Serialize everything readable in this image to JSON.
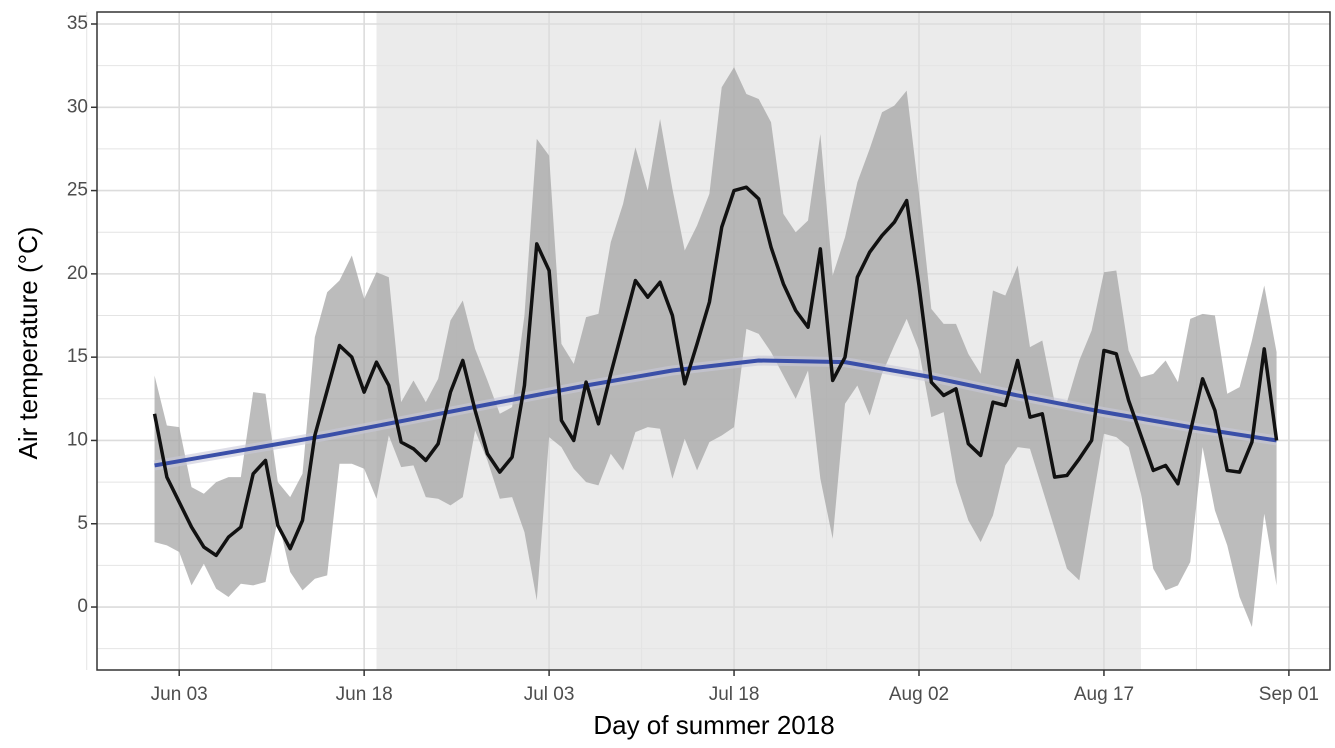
{
  "chart_data": {
    "type": "line",
    "x_label": "Day of summer 2018",
    "y_label": "Air temperature (°C)",
    "x": [
      "2018-06-01",
      "2018-06-02",
      "2018-06-03",
      "2018-06-04",
      "2018-06-05",
      "2018-06-06",
      "2018-06-07",
      "2018-06-08",
      "2018-06-09",
      "2018-06-10",
      "2018-06-11",
      "2018-06-12",
      "2018-06-13",
      "2018-06-14",
      "2018-06-15",
      "2018-06-16",
      "2018-06-17",
      "2018-06-18",
      "2018-06-19",
      "2018-06-20",
      "2018-06-21",
      "2018-06-22",
      "2018-06-23",
      "2018-06-24",
      "2018-06-25",
      "2018-06-26",
      "2018-06-27",
      "2018-06-28",
      "2018-06-29",
      "2018-06-30",
      "2018-07-01",
      "2018-07-02",
      "2018-07-03",
      "2018-07-04",
      "2018-07-05",
      "2018-07-06",
      "2018-07-07",
      "2018-07-08",
      "2018-07-09",
      "2018-07-10",
      "2018-07-11",
      "2018-07-12",
      "2018-07-13",
      "2018-07-14",
      "2018-07-15",
      "2018-07-16",
      "2018-07-17",
      "2018-07-18",
      "2018-07-19",
      "2018-07-20",
      "2018-07-21",
      "2018-07-22",
      "2018-07-23",
      "2018-07-24",
      "2018-07-25",
      "2018-07-26",
      "2018-07-27",
      "2018-07-28",
      "2018-07-29",
      "2018-07-30",
      "2018-07-31",
      "2018-08-01",
      "2018-08-02",
      "2018-08-03",
      "2018-08-04",
      "2018-08-05",
      "2018-08-06",
      "2018-08-07",
      "2018-08-08",
      "2018-08-09",
      "2018-08-10",
      "2018-08-11",
      "2018-08-12",
      "2018-08-13",
      "2018-08-14",
      "2018-08-15",
      "2018-08-16",
      "2018-08-17",
      "2018-08-18",
      "2018-08-19",
      "2018-08-20",
      "2018-08-21",
      "2018-08-22",
      "2018-08-23",
      "2018-08-24",
      "2018-08-25",
      "2018-08-26",
      "2018-08-27",
      "2018-08-28",
      "2018-08-29",
      "2018-08-30",
      "2018-08-31"
    ],
    "series": [
      {
        "color": "#111111",
        "values": [
          11.6,
          7.8,
          6.3,
          4.8,
          3.6,
          3.1,
          4.2,
          4.8,
          8.0,
          8.8,
          4.9,
          3.5,
          5.2,
          10.3,
          13.0,
          15.7,
          15.0,
          12.9,
          14.7,
          13.3,
          9.9,
          9.5,
          8.8,
          9.8,
          12.9,
          14.8,
          11.8,
          9.2,
          8.1,
          9.0,
          13.3,
          21.8,
          20.2,
          11.2,
          10.0,
          13.5,
          11.0,
          14.0,
          16.8,
          19.6,
          18.6,
          19.5,
          17.5,
          13.4,
          15.8,
          18.3,
          22.8,
          25.0,
          25.2,
          24.5,
          21.6,
          19.4,
          17.8,
          16.8,
          21.5,
          13.6,
          15.0,
          19.8,
          21.3,
          22.3,
          23.1,
          24.4,
          19.3,
          13.5,
          12.7,
          13.1,
          9.8,
          9.1,
          12.3,
          12.1,
          14.8,
          11.4,
          11.6,
          7.8,
          7.9,
          8.9,
          10.0,
          15.4,
          15.2,
          12.4,
          10.3,
          8.2,
          8.5,
          7.4,
          10.5,
          13.7,
          11.8,
          8.2,
          8.1,
          9.9,
          15.5,
          10.0
        ]
      }
    ],
    "ribbon": {
      "color": "#a6a6a6",
      "upper": [
        13.9,
        10.9,
        10.8,
        7.2,
        6.8,
        7.5,
        7.8,
        7.8,
        12.9,
        12.8,
        7.5,
        6.6,
        8.0,
        16.2,
        18.9,
        19.6,
        21.1,
        18.5,
        20.1,
        19.8,
        12.3,
        13.6,
        12.3,
        13.7,
        17.2,
        18.4,
        15.5,
        13.6,
        11.6,
        12.0,
        17.5,
        28.1,
        27.1,
        15.8,
        14.6,
        17.4,
        17.6,
        21.9,
        24.2,
        27.6,
        25.0,
        29.3,
        25.1,
        21.4,
        22.9,
        24.8,
        31.2,
        32.4,
        30.8,
        30.5,
        29.1,
        23.6,
        22.5,
        23.2,
        28.4,
        19.9,
        22.2,
        25.5,
        27.5,
        29.7,
        30.1,
        31.0,
        24.8,
        17.9,
        17.0,
        17.0,
        15.2,
        14.0,
        19.0,
        18.7,
        20.5,
        15.6,
        16.0,
        12.3,
        12.3,
        14.8,
        16.6,
        20.1,
        20.2,
        15.4,
        13.8,
        14.0,
        14.8,
        13.5,
        17.3,
        17.6,
        17.5,
        12.8,
        13.2,
        16.0,
        19.3,
        15.3
      ],
      "lower": [
        3.9,
        3.7,
        3.3,
        1.3,
        2.6,
        1.1,
        0.6,
        1.4,
        1.3,
        1.5,
        5.3,
        2.1,
        1.0,
        1.7,
        1.9,
        8.6,
        8.6,
        8.3,
        6.5,
        10.3,
        8.4,
        8.5,
        6.6,
        6.5,
        6.1,
        6.6,
        10.6,
        8.8,
        6.5,
        6.6,
        4.5,
        0.4,
        10.2,
        9.6,
        8.3,
        7.5,
        7.3,
        9.2,
        8.2,
        10.5,
        10.8,
        10.7,
        7.7,
        10.1,
        8.2,
        9.9,
        10.3,
        10.8,
        16.7,
        16.4,
        15.3,
        13.9,
        12.5,
        14.2,
        7.7,
        4.1,
        12.2,
        13.3,
        11.5,
        14.0,
        15.7,
        17.3,
        15.4,
        11.4,
        11.7,
        7.5,
        5.2,
        3.9,
        5.5,
        8.5,
        9.6,
        9.5,
        7.1,
        4.7,
        2.3,
        1.6,
        6.0,
        10.4,
        10.2,
        9.6,
        6.8,
        2.3,
        1.0,
        1.3,
        2.7,
        9.6,
        5.8,
        3.7,
        0.6,
        -1.2,
        5.6,
        1.3
      ]
    },
    "smooth": {
      "color": "#3a4fa8",
      "x": [
        "2018-06-01",
        "2018-06-08",
        "2018-06-15",
        "2018-06-22",
        "2018-06-29",
        "2018-07-06",
        "2018-07-13",
        "2018-07-20",
        "2018-07-27",
        "2018-08-03",
        "2018-08-10",
        "2018-08-17",
        "2018-08-24",
        "2018-08-31"
      ],
      "values": [
        8.5,
        9.4,
        10.3,
        11.3,
        12.3,
        13.3,
        14.2,
        14.8,
        14.7,
        13.8,
        12.7,
        11.7,
        10.8,
        10.0
      ]
    },
    "shade": {
      "range": [
        "2018-06-19",
        "2018-08-20"
      ],
      "color": "#ebebeb"
    },
    "xlim": [
      "2018-05-27T08:00:00Z",
      "2018-09-04T08:00:00Z"
    ],
    "xticks": [
      {
        "value": "2018-06-03",
        "label": "Jun 03"
      },
      {
        "value": "2018-06-18",
        "label": "Jun 18"
      },
      {
        "value": "2018-07-03",
        "label": "Jul 03"
      },
      {
        "value": "2018-07-18",
        "label": "Jul 18"
      },
      {
        "value": "2018-08-02",
        "label": "Aug 02"
      },
      {
        "value": "2018-08-17",
        "label": "Aug 17"
      },
      {
        "value": "2018-09-01",
        "label": "Sep 01"
      }
    ],
    "ylim": [
      -3.78,
      35.72
    ],
    "yticks": [
      0,
      5,
      10,
      15,
      20,
      25,
      30,
      35
    ],
    "grid": true
  }
}
